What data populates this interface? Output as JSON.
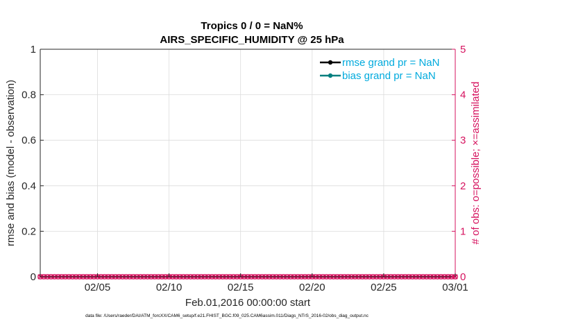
{
  "chart_data": {
    "type": "line",
    "title": "Tropics 0 / 0 = NaN%",
    "subtitle": "AIRS_SPECIFIC_HUMIDITY @ 25 hPa",
    "ylabel": "rmse and bias (model - observation)",
    "ylabel_right": "# of obs: o=possible; ×=assimilated",
    "xlabel": "Feb.01,2016 00:00:00 start",
    "footnote": "data file: /Users/raeder/DAI/ATM_forcXX/CAM6_setup/f.e21.FHIST_BGC.f09_025.CAM6assim.011/Diags_NTrS_2016-02/obs_diag_output.nc",
    "ylim": [
      0,
      1
    ],
    "ylim_right": [
      0,
      5
    ],
    "yticks": [
      "0",
      "0.2",
      "0.4",
      "0.6",
      "0.8",
      "1"
    ],
    "yticks_right": [
      "0",
      "1",
      "2",
      "3",
      "4",
      "5"
    ],
    "xlim": [
      "2016-02-01",
      "2016-03-01"
    ],
    "xticks": [
      {
        "date": "2016-02-05",
        "label": "02/05"
      },
      {
        "date": "2016-02-10",
        "label": "02/10"
      },
      {
        "date": "2016-02-15",
        "label": "02/15"
      },
      {
        "date": "2016-02-20",
        "label": "02/20"
      },
      {
        "date": "2016-02-25",
        "label": "02/25"
      },
      {
        "date": "2016-03-01",
        "label": "03/01"
      }
    ],
    "grid": true,
    "legend_position": "top-right",
    "series": [
      {
        "name": "rmse grand pr = NaN",
        "color": "#000000",
        "values": []
      },
      {
        "name": "bias grand pr = NaN",
        "color": "#007f7f",
        "values": []
      }
    ],
    "obs_counts": {
      "color": "#d6135f",
      "start": "2016-02-01 00:00",
      "end": "2016-03-01 00:00",
      "interval_hours": 6,
      "possible": 0,
      "assimilated": 0
    }
  }
}
